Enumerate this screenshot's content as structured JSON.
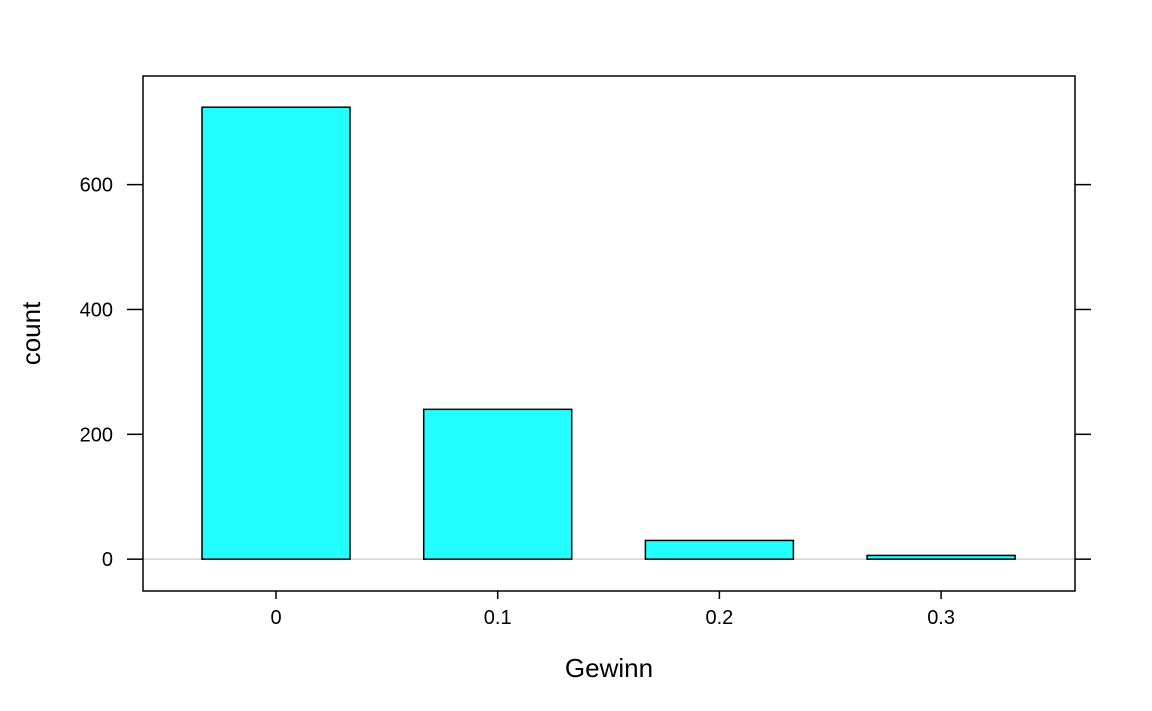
{
  "chart_data": {
    "type": "bar",
    "title": "",
    "xlabel": "Gewinn",
    "ylabel": "count",
    "categories": [
      "0",
      "0.1",
      "0.2",
      "0.3"
    ],
    "values": [
      724,
      240,
      30,
      6
    ],
    "ylim": [
      -51,
      774
    ],
    "yticks": [
      0,
      200,
      400,
      600
    ],
    "grid": false,
    "legend": "none",
    "colors": {
      "bar_fill": "#22ffff",
      "bar_stroke": "#000000",
      "baseline": "#d3d3d3",
      "frame": "#000000"
    }
  }
}
